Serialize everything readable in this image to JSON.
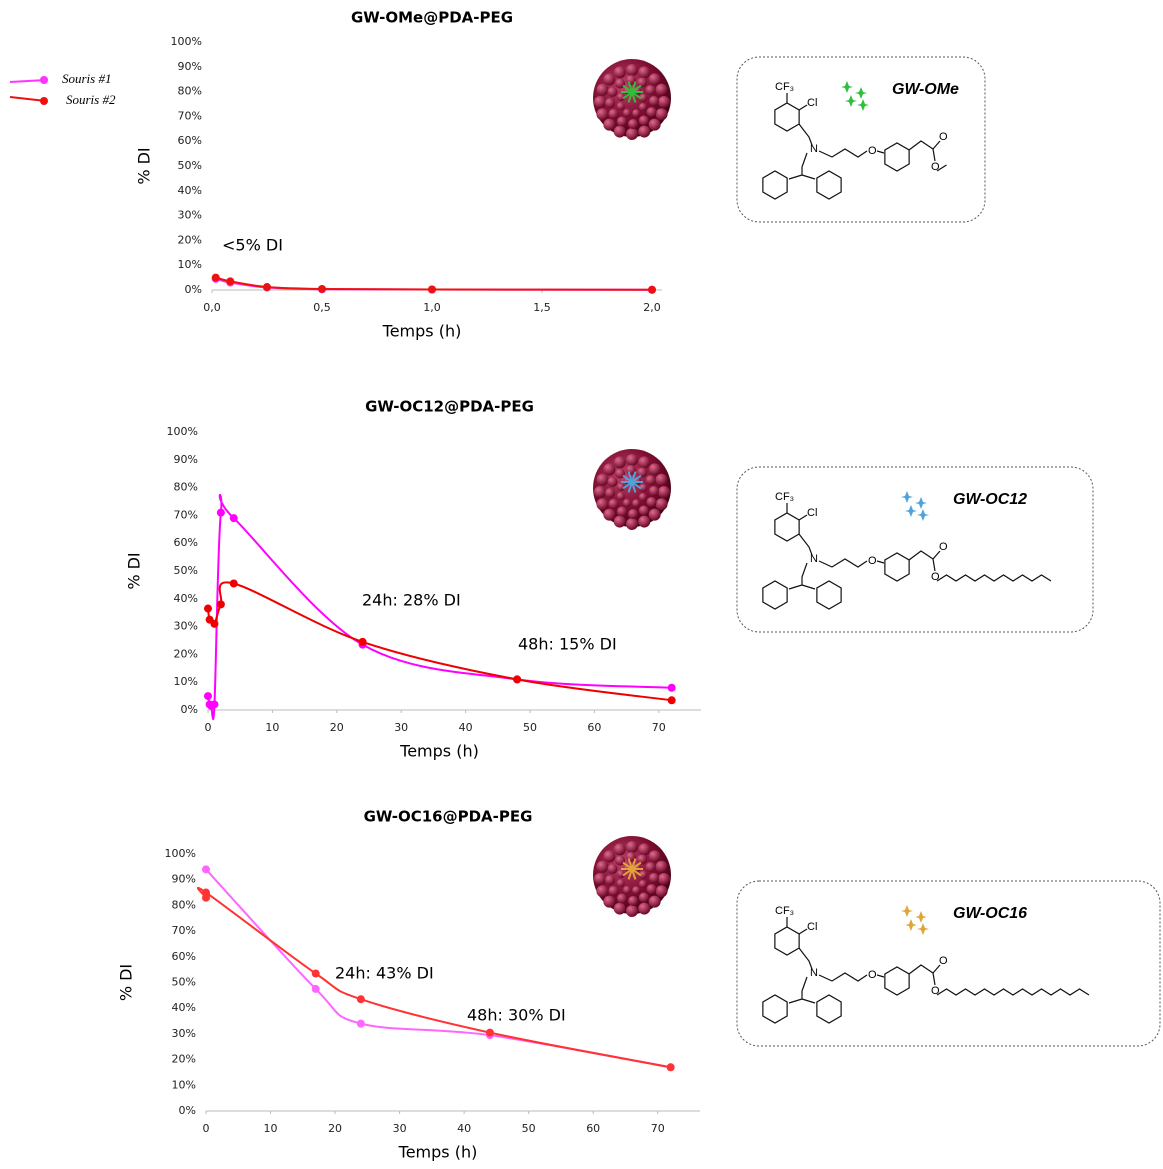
{
  "chart_data": [
    {
      "type": "line",
      "title": "GW-OMe@PDA-PEG",
      "x_label": "Temps (h)",
      "y_label": "% DI",
      "xlim": [
        0,
        2
      ],
      "ylim": [
        0,
        100
      ],
      "xticks": [
        {
          "value": 0,
          "label": "0,0"
        },
        {
          "value": 0.5,
          "label": "0,5"
        },
        {
          "value": 1,
          "label": "1,0"
        },
        {
          "value": 1.5,
          "label": "1,5"
        },
        {
          "value": 2,
          "label": "2,0"
        }
      ],
      "yticks": [
        {
          "value": 0,
          "label": "0%"
        },
        {
          "value": 10,
          "label": "10%"
        },
        {
          "value": 20,
          "label": "20%"
        },
        {
          "value": 30,
          "label": "30%"
        },
        {
          "value": 40,
          "label": "40%"
        },
        {
          "value": 50,
          "label": "50%"
        },
        {
          "value": 60,
          "label": "60%"
        },
        {
          "value": 70,
          "label": "70%"
        },
        {
          "value": 80,
          "label": "80%"
        },
        {
          "value": 90,
          "label": "90%"
        },
        {
          "value": 100,
          "label": "100%"
        }
      ],
      "annotations": [
        "<5% DI"
      ],
      "series": [
        {
          "name": "Souris #1",
          "color": "#ff33ff",
          "x": [
            0.017,
            0.083,
            0.25,
            0.5,
            1,
            2
          ],
          "values": [
            4.5,
            3,
            1,
            0.3,
            0.2,
            0.1
          ]
        },
        {
          "name": "Souris #2",
          "color": "#ee1111",
          "x": [
            0.017,
            0.083,
            0.25,
            0.5,
            1,
            2
          ],
          "values": [
            5,
            3.5,
            1.2,
            0.4,
            0.2,
            0.1
          ]
        }
      ]
    },
    {
      "type": "line",
      "title": "GW-OC12@PDA-PEG",
      "x_label": "Temps (h)",
      "y_label": "% DI",
      "xlim": [
        0,
        75
      ],
      "ylim": [
        0,
        100
      ],
      "xticks": [
        0,
        10,
        20,
        30,
        40,
        50,
        60,
        70
      ],
      "yticks": [
        {
          "value": 0,
          "label": "0%"
        },
        {
          "value": 10,
          "label": "10%"
        },
        {
          "value": 20,
          "label": "20%"
        },
        {
          "value": 30,
          "label": "30%"
        },
        {
          "value": 40,
          "label": "40%"
        },
        {
          "value": 50,
          "label": "50%"
        },
        {
          "value": 60,
          "label": "60%"
        },
        {
          "value": 70,
          "label": "70%"
        },
        {
          "value": 80,
          "label": "80%"
        },
        {
          "value": 90,
          "label": "90%"
        },
        {
          "value": 100,
          "label": "100%"
        }
      ],
      "annotations": [
        "24h: 28% DI",
        "48h: 15% DI"
      ],
      "series": [
        {
          "name": "Souris #1",
          "color": "#ff00ff",
          "x": [
            0,
            0.25,
            0.5,
            1,
            2,
            4,
            24,
            48,
            72
          ],
          "values": [
            5,
            2,
            1.5,
            2,
            71,
            69,
            23.5,
            11,
            8
          ]
        },
        {
          "name": "Souris #2",
          "color": "#ee0000",
          "x": [
            0,
            0.25,
            1,
            2,
            4,
            24,
            48,
            72
          ],
          "values": [
            36.5,
            32.5,
            31,
            38,
            45.5,
            24.5,
            11,
            3.5
          ]
        }
      ]
    },
    {
      "type": "line",
      "title": "GW-OC16@PDA-PEG",
      "x_label": "Temps (h)",
      "y_label": "% DI",
      "xlim": [
        0,
        75
      ],
      "ylim": [
        0,
        100
      ],
      "xticks": [
        0,
        10,
        20,
        30,
        40,
        50,
        60,
        70
      ],
      "yticks": [
        {
          "value": 0,
          "label": "0%"
        },
        {
          "value": 10,
          "label": "10%"
        },
        {
          "value": 20,
          "label": "20%"
        },
        {
          "value": 30,
          "label": "30%"
        },
        {
          "value": 40,
          "label": "40%"
        },
        {
          "value": 50,
          "label": "50%"
        },
        {
          "value": 60,
          "label": "60%"
        },
        {
          "value": 70,
          "label": "70%"
        },
        {
          "value": 80,
          "label": "80%"
        },
        {
          "value": 90,
          "label": "90%"
        },
        {
          "value": 100,
          "label": "100%"
        }
      ],
      "annotations": [
        "24h: 43% DI",
        "48h: 30% DI"
      ],
      "series": [
        {
          "name": "Souris #1",
          "color": "#ff66ff",
          "x": [
            0,
            17,
            24,
            44,
            72
          ],
          "values": [
            94,
            47.5,
            34,
            29.5,
            17
          ]
        },
        {
          "name": "Souris #2",
          "color": "#ff3333",
          "x": [
            0,
            0,
            17,
            24,
            44,
            72
          ],
          "values": [
            83,
            85,
            53.5,
            43.5,
            30.5,
            17
          ]
        }
      ]
    }
  ],
  "molecules": [
    {
      "name": "GW-OMe",
      "atoms": [
        "CF₃",
        "Cl",
        "N",
        "O",
        "O",
        "O"
      ]
    },
    {
      "name": "GW-OC12",
      "atoms": [
        "CF₃",
        "Cl",
        "N",
        "O",
        "O",
        "O"
      ]
    },
    {
      "name": "GW-OC16",
      "atoms": [
        "CF₃",
        "Cl",
        "N",
        "O",
        "O",
        "O"
      ]
    }
  ]
}
